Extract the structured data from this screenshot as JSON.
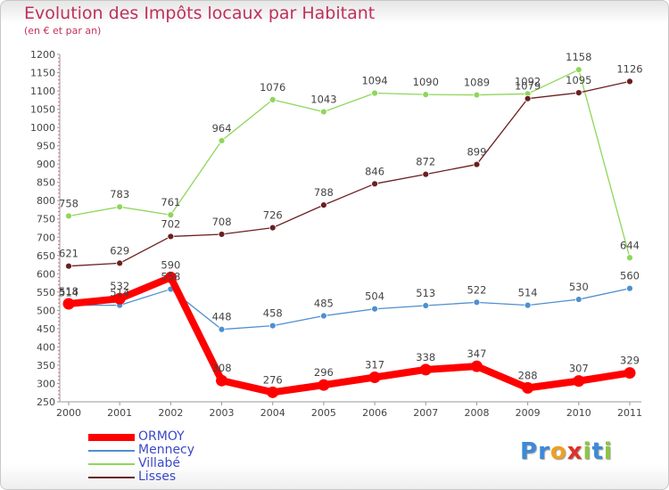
{
  "chart_data": {
    "type": "line",
    "title": "Evolution des Impôts locaux par Habitant",
    "subtitle": "(en € et par an)",
    "xlabel": "",
    "ylabel": "",
    "categories": [
      "2000",
      "2001",
      "2002",
      "2003",
      "2004",
      "2005",
      "2006",
      "2007",
      "2008",
      "2009",
      "2010",
      "2011"
    ],
    "ylim": [
      250,
      1200
    ],
    "ytick_step": 50,
    "grid": false,
    "legend_position": "bottom-left",
    "series": [
      {
        "name": "ORMOY",
        "color": "#ff0000",
        "values": [
          518,
          532,
          590,
          308,
          276,
          296,
          317,
          338,
          347,
          288,
          307,
          329
        ]
      },
      {
        "name": "Mennecy",
        "color": "#4f8fcf",
        "values": [
          514,
          514,
          558,
          448,
          458,
          485,
          504,
          513,
          522,
          514,
          530,
          560
        ]
      },
      {
        "name": "Villabé",
        "color": "#8fd65a",
        "values": [
          758,
          783,
          761,
          964,
          1076,
          1043,
          1094,
          1090,
          1089,
          1092,
          1158,
          644
        ]
      },
      {
        "name": "Lisses",
        "color": "#6b1f1f",
        "values": [
          621,
          629,
          702,
          708,
          726,
          788,
          846,
          872,
          899,
          1079,
          1095,
          1126
        ]
      }
    ]
  },
  "logo": {
    "text": "Proxiti",
    "letters": [
      "P",
      "r",
      "o",
      "x",
      "i",
      "t",
      "i"
    ],
    "colors": [
      "#3b8ad9",
      "#3b8ad9",
      "#f0a020",
      "#e0302a",
      "#8cc63f",
      "#3b8ad9",
      "#8cc63f"
    ]
  }
}
